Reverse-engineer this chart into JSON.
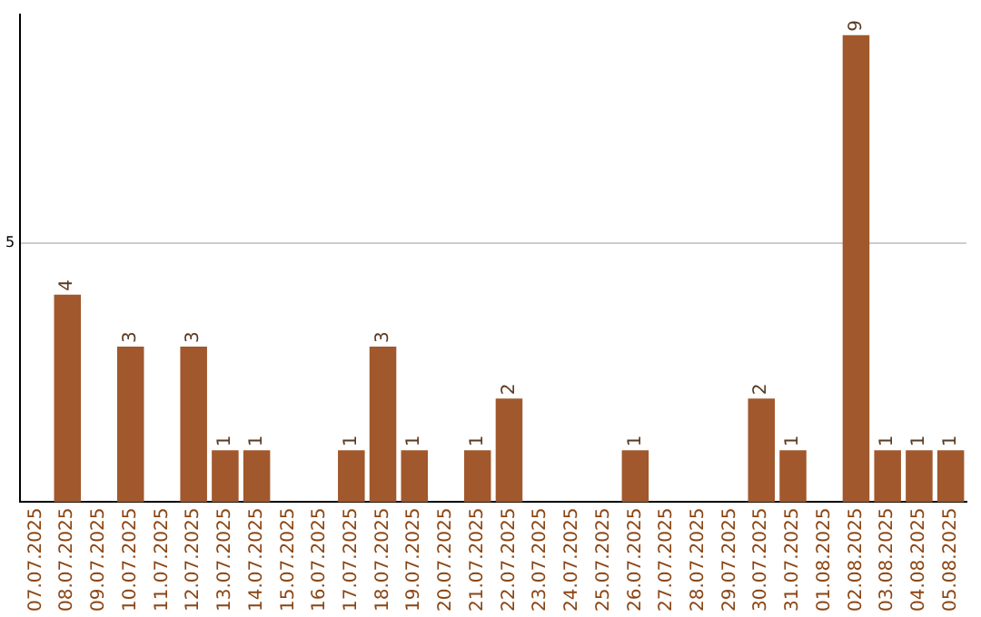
{
  "chart_data": {
    "type": "bar",
    "categories": [
      "07.07.2025",
      "08.07.2025",
      "09.07.2025",
      "10.07.2025",
      "11.07.2025",
      "12.07.2025",
      "13.07.2025",
      "14.07.2025",
      "15.07.2025",
      "16.07.2025",
      "17.07.2025",
      "18.07.2025",
      "19.07.2025",
      "20.07.2025",
      "21.07.2025",
      "22.07.2025",
      "23.07.2025",
      "24.07.2025",
      "25.07.2025",
      "26.07.2025",
      "27.07.2025",
      "28.07.2025",
      "29.07.2025",
      "30.07.2025",
      "31.07.2025",
      "01.08.2025",
      "02.08.2025",
      "03.08.2025",
      "04.08.2025",
      "05.08.2025"
    ],
    "values": [
      0,
      4,
      0,
      3,
      0,
      3,
      1,
      1,
      0,
      0,
      1,
      3,
      1,
      0,
      1,
      2,
      0,
      0,
      0,
      1,
      0,
      0,
      0,
      2,
      1,
      0,
      9,
      1,
      1,
      1
    ],
    "value_labels": [
      null,
      "4",
      null,
      "3",
      null,
      "3",
      "1",
      "1",
      null,
      null,
      "1",
      "3",
      "1",
      null,
      "1",
      "2",
      null,
      null,
      null,
      "1",
      null,
      null,
      null,
      "2",
      "1",
      null,
      "9",
      "1",
      "1",
      "1"
    ],
    "color": "#a0582c",
    "ylim": [
      0,
      9.4
    ],
    "yticks": [
      5
    ],
    "grid": "y"
  }
}
